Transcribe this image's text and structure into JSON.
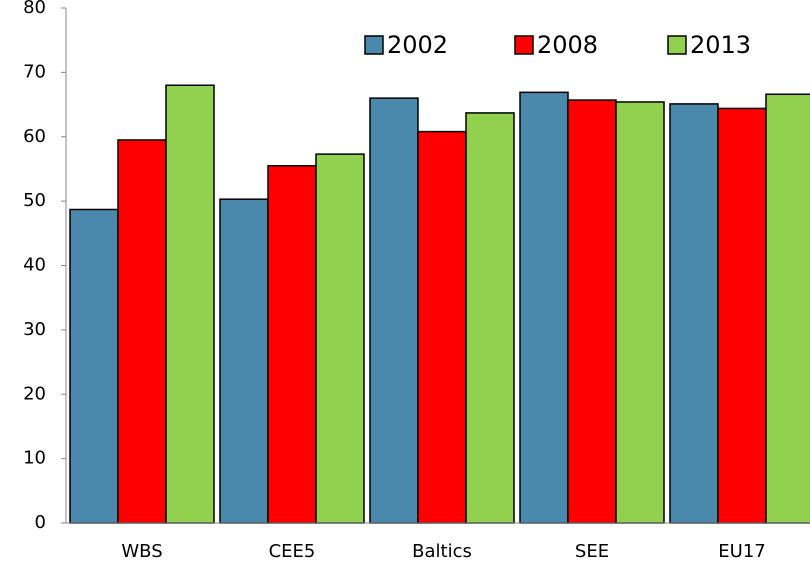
{
  "chart_data": {
    "type": "bar",
    "categories": [
      "WBS",
      "CEE5",
      "Baltics",
      "SEE",
      "EU17"
    ],
    "series": [
      {
        "name": "2002",
        "color": "#4a89ab",
        "values": [
          48.7,
          50.3,
          66,
          66.9,
          65.1
        ]
      },
      {
        "name": "2008",
        "color": "#ff0000",
        "values": [
          59.5,
          55.5,
          60.8,
          65.7,
          64.4
        ]
      },
      {
        "name": "2013",
        "color": "#92d050",
        "values": [
          68,
          57.3,
          63.7,
          65.4,
          66.6
        ]
      }
    ],
    "ylim": [
      0,
      80
    ],
    "yticks": [
      0,
      10,
      20,
      30,
      40,
      50,
      60,
      70,
      80
    ],
    "grid": false,
    "legend": "top-right"
  }
}
